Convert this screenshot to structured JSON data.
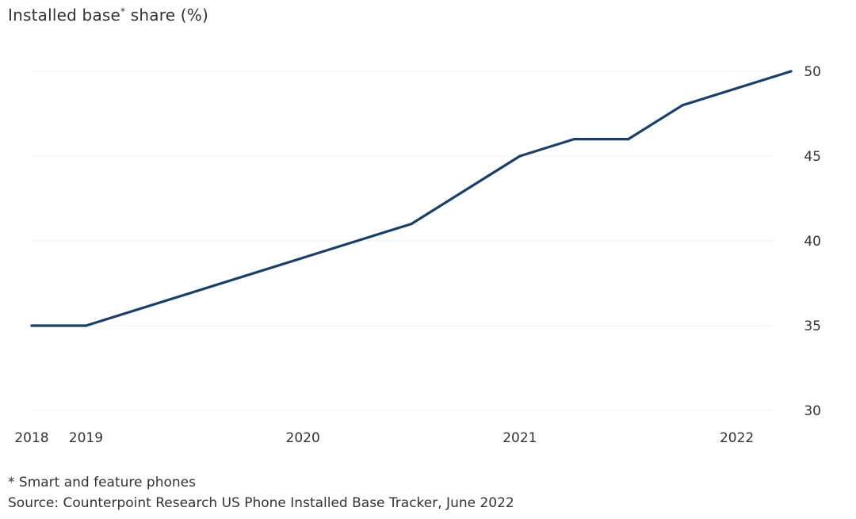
{
  "chart_data": {
    "type": "line",
    "title_main": "Installed base",
    "title_mark": "*",
    "title_rest": " share (%)",
    "xlabel": "",
    "ylabel": "",
    "x_ticks": [
      {
        "label": "2018",
        "value": 2018.0
      },
      {
        "label": "2019",
        "value": 2018.25
      },
      {
        "label": "2020",
        "value": 2019.25
      },
      {
        "label": "2021",
        "value": 2020.25
      },
      {
        "label": "2022",
        "value": 2021.25
      }
    ],
    "xlim": [
      2018.0,
      2021.5
    ],
    "ylim": [
      30,
      50
    ],
    "y_ticks": [
      30,
      35,
      40,
      45,
      50
    ],
    "y_axis_position": "right",
    "grid": "horizontal",
    "series": [
      {
        "color": "#1b3f6b",
        "points": [
          {
            "x": 2018.0,
            "y": 35
          },
          {
            "x": 2018.25,
            "y": 35
          },
          {
            "x": 2019.25,
            "y": 39
          },
          {
            "x": 2019.75,
            "y": 41
          },
          {
            "x": 2020.25,
            "y": 45
          },
          {
            "x": 2020.5,
            "y": 46
          },
          {
            "x": 2020.75,
            "y": 46
          },
          {
            "x": 2021.0,
            "y": 48
          },
          {
            "x": 2021.5,
            "y": 50
          }
        ]
      }
    ]
  },
  "footnote": "* Smart and feature phones",
  "source": "Source: Counterpoint Research US Phone Installed Base Tracker, June 2022"
}
